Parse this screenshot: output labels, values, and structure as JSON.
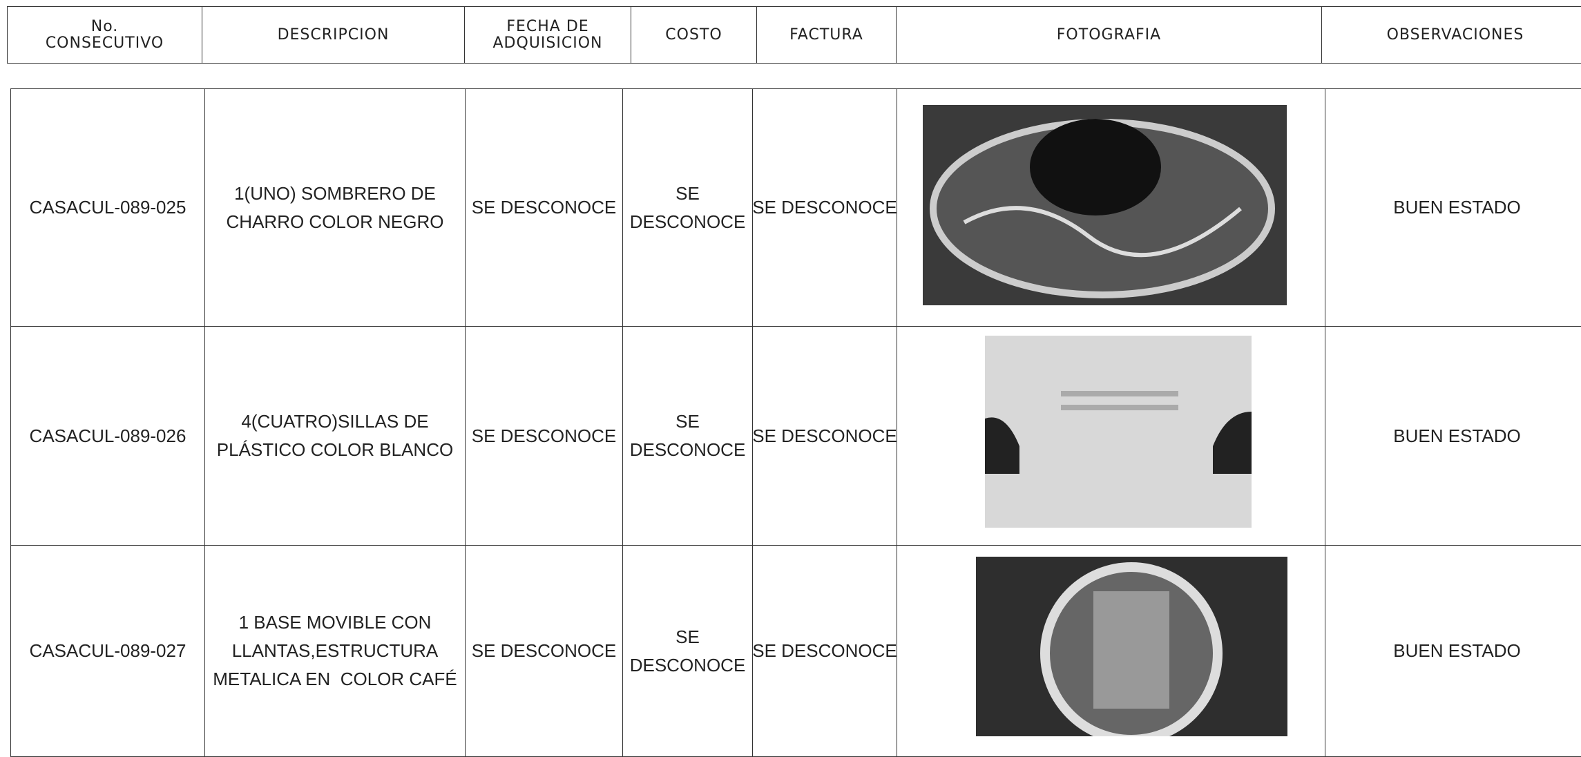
{
  "header": {
    "columns": [
      [
        "No.",
        "CONSECUTIVO"
      ],
      [
        "DESCRIPCION"
      ],
      [
        "FECHA DE",
        "ADQUISICION"
      ],
      [
        "COSTO"
      ],
      [
        "FACTURA"
      ],
      [
        "FOTOGRAFIA"
      ],
      [
        "OBSERVACIONES"
      ]
    ]
  },
  "table": {
    "rows": [
      [
        [
          "CASACUL-089-025"
        ],
        [
          "1(UNO) SOMBRERO DE",
          "CHARRO COLOR NEGRO"
        ],
        [
          "SE DESCONOCE"
        ],
        [
          "SE",
          "DESCONOCE"
        ],
        [
          "SE DESCONOCE"
        ],
        [
          "BUEN ESTADO"
        ]
      ],
      [
        [
          "CASACUL-089-026"
        ],
        [
          "4(CUATRO)SILLAS DE",
          "PLÁSTICO COLOR BLANCO"
        ],
        [
          "SE DESCONOCE"
        ],
        [
          "SE",
          "DESCONOCE"
        ],
        [
          "SE DESCONOCE"
        ],
        [
          "BUEN ESTADO"
        ]
      ],
      [
        [
          "CASACUL-089-027"
        ],
        [
          "1 BASE MOVIBLE CON",
          "LLANTAS,ESTRUCTURA",
          "METALICA EN  COLOR CAFÉ"
        ],
        [
          "SE DESCONOCE"
        ],
        [
          "SE",
          "DESCONOCE"
        ],
        [
          "SE DESCONOCE"
        ],
        [
          "BUEN ESTADO"
        ]
      ]
    ]
  }
}
